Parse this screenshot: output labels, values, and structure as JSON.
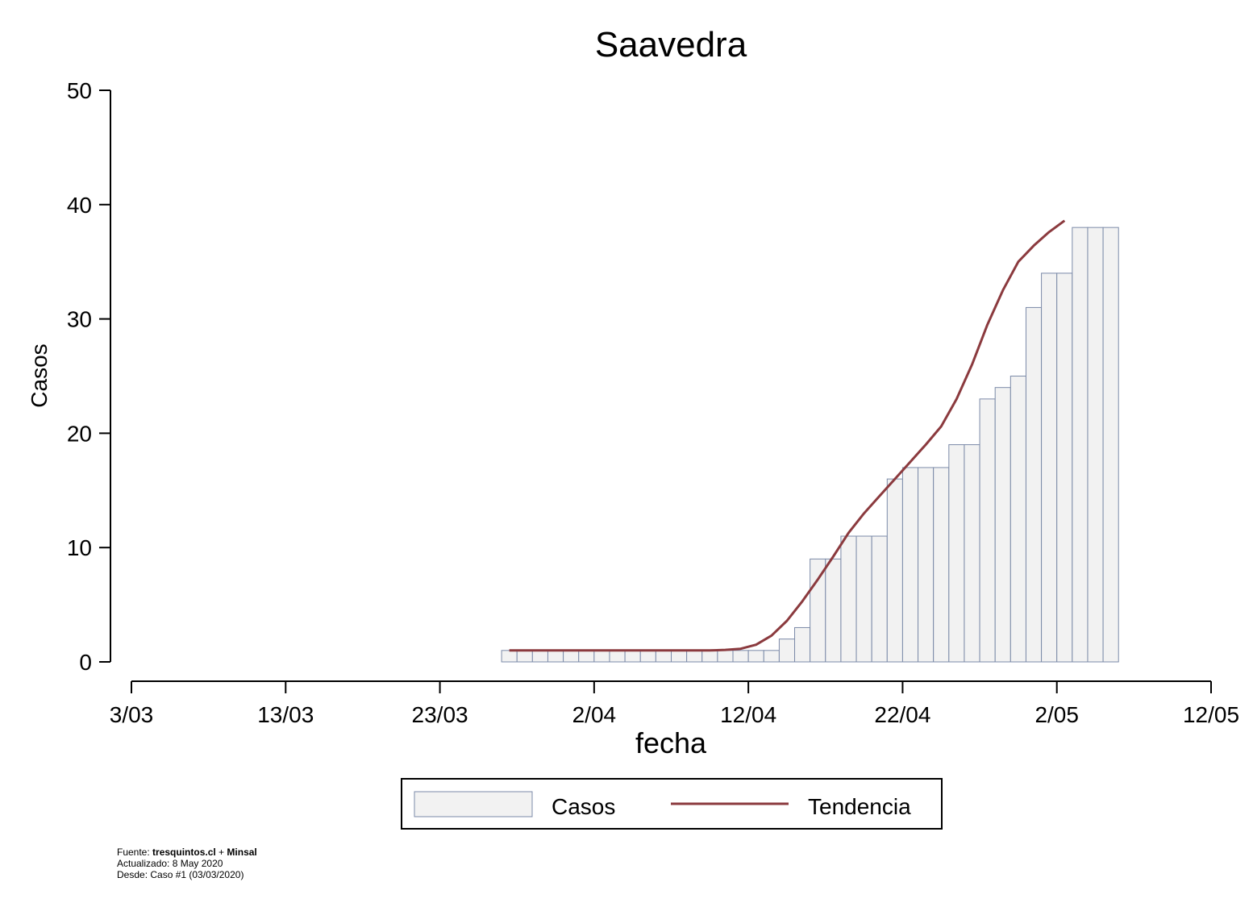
{
  "chart_data": {
    "type": "bar",
    "title": "Saavedra",
    "xlabel": "fecha",
    "ylabel": "Casos",
    "ylim": [
      0,
      50
    ],
    "yticks": [
      0,
      10,
      20,
      30,
      40,
      50
    ],
    "x_tick_labels": [
      "3/03",
      "13/03",
      "23/03",
      "2/04",
      "12/04",
      "22/04",
      "2/05",
      "12/05"
    ],
    "x_tick_days": [
      0,
      10,
      20,
      30,
      40,
      50,
      60,
      70
    ],
    "xlim_days": [
      0,
      70
    ],
    "bars": {
      "name": "Casos",
      "start_day": 24,
      "values": [
        1,
        1,
        1,
        1,
        1,
        1,
        1,
        1,
        1,
        1,
        1,
        1,
        1,
        1,
        1,
        1,
        1,
        1,
        2,
        3,
        9,
        9,
        11,
        11,
        11,
        16,
        17,
        17,
        17,
        19,
        19,
        23,
        24,
        25,
        31,
        34,
        34,
        38,
        38,
        38
      ],
      "fill": "#f2f2f2",
      "stroke": "#7b8aa8"
    },
    "trend": {
      "name": "Tendencia",
      "start_day": 24.5,
      "values": [
        1,
        1,
        1,
        1,
        1,
        1,
        1,
        1,
        1,
        1,
        1,
        1,
        1,
        1,
        1.05,
        1.15,
        1.5,
        2.3,
        3.6,
        5.3,
        7.2,
        9.2,
        11.3,
        13,
        14.5,
        16,
        17.5,
        19,
        20.6,
        23,
        26,
        29.5,
        32.5,
        35,
        36.4,
        37.6,
        38.6
      ],
      "color": "#8b3a3e"
    },
    "grid": false,
    "legend": {
      "position": "bottom",
      "entries": [
        "Casos",
        "Tendencia"
      ]
    }
  },
  "footer": {
    "source_prefix": "Fuente: ",
    "source_main": "tresquintos.cl",
    "source_join": " + ",
    "source_second": "Minsal",
    "updated": "Actualizado: 8 May 2020",
    "since": "Desde: Caso #1  (03/03/2020)"
  }
}
